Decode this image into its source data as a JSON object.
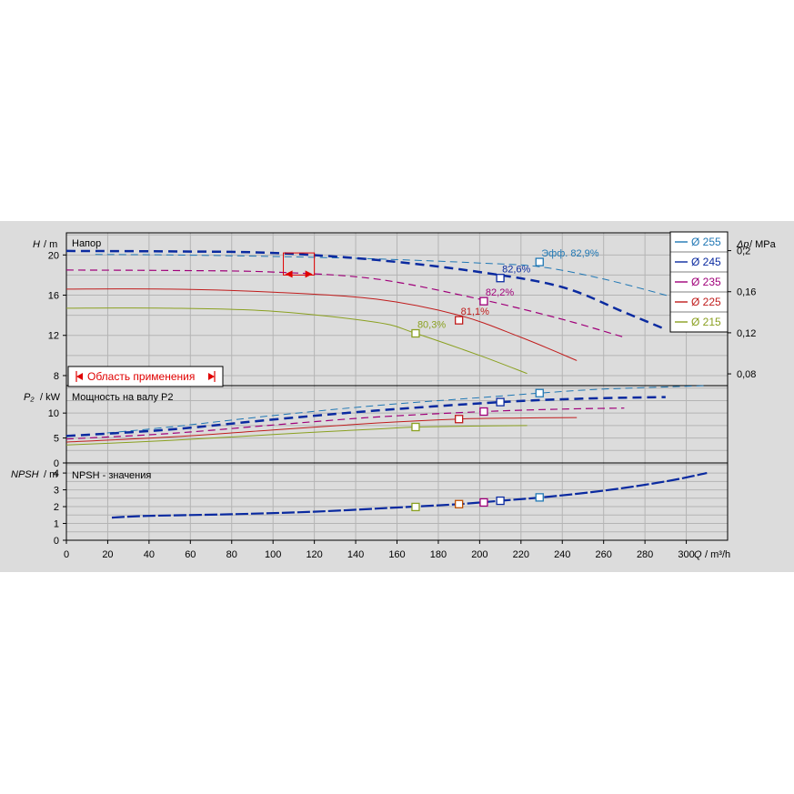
{
  "chart_data": {
    "type": "line",
    "x_axis": {
      "label": "Q",
      "unit": "m³/h",
      "ticks": [
        0,
        20,
        40,
        60,
        80,
        100,
        120,
        140,
        160,
        180,
        200,
        220,
        240,
        260,
        280,
        300
      ],
      "range": [
        0,
        320
      ]
    },
    "head_panel": {
      "title": "Напор",
      "y_label": "H",
      "y_unit": "m",
      "y_ticks": [
        8,
        12,
        16,
        20
      ],
      "y_range": [
        7,
        22.2
      ],
      "y2_label": "Δp",
      "y2_unit": "MPa",
      "y2_ticks": [
        "0,08",
        "0,12",
        "0,16",
        "0,2"
      ],
      "y2_values": [
        0.08,
        0.12,
        0.16,
        0.2
      ],
      "application_area_label": "Область применения",
      "series": [
        {
          "name": "Ø 255",
          "color": "#1f77b4",
          "points": [
            [
              14,
              20.05
            ],
            [
              50,
              20.0
            ],
            [
              100,
              19.85
            ],
            [
              150,
              19.6
            ],
            [
              200,
              19.2
            ],
            [
              230,
              18.8
            ],
            [
              260,
              17.6
            ],
            [
              290,
              16.0
            ],
            [
              310,
              14.8
            ]
          ],
          "bep_q": 229,
          "bep_h": 19.3,
          "eff_label": "Эфф.  82,9%"
        },
        {
          "name": "Ø 245",
          "color": "#0a2aa0",
          "points": [
            [
              0,
              20.4
            ],
            [
              50,
              20.35
            ],
            [
              100,
              20.2
            ],
            [
              150,
              19.5
            ],
            [
              200,
              18.3
            ],
            [
              240,
              16.8
            ],
            [
              270,
              14.3
            ],
            [
              290,
              12.6
            ]
          ],
          "bep_q": 210,
          "bep_h": 17.7,
          "eff_label": "82,6%"
        },
        {
          "name": "Ø 235",
          "color": "#a0007a",
          "points": [
            [
              0,
              18.5
            ],
            [
              50,
              18.45
            ],
            [
              100,
              18.3
            ],
            [
              150,
              17.6
            ],
            [
              200,
              15.6
            ],
            [
              240,
              13.6
            ],
            [
              270,
              11.8
            ]
          ],
          "bep_q": 202,
          "bep_h": 15.4,
          "eff_label": "82,2%"
        },
        {
          "name": "Ø 225",
          "color": "#c01c1c",
          "points": [
            [
              0,
              16.6
            ],
            [
              50,
              16.6
            ],
            [
              100,
              16.3
            ],
            [
              150,
              15.6
            ],
            [
              190,
              14.0
            ],
            [
              220,
              11.8
            ],
            [
              247,
              9.5
            ]
          ],
          "bep_q": 190,
          "bep_h": 13.5,
          "eff_label": "81,1%"
        },
        {
          "name": "Ø 215",
          "color": "#8aa020",
          "points": [
            [
              0,
              14.7
            ],
            [
              50,
              14.7
            ],
            [
              100,
              14.4
            ],
            [
              150,
              13.3
            ],
            [
              169,
              12.2
            ],
            [
              200,
              10.0
            ],
            [
              223,
              8.2
            ]
          ],
          "bep_q": 169,
          "bep_h": 12.2,
          "eff_label": "80,3%"
        }
      ]
    },
    "power_panel": {
      "title": "Мощность на валу P2",
      "y_label": "P₂",
      "y_unit": "kW",
      "y_ticks": [
        0,
        5,
        10
      ],
      "y_range": [
        0,
        15.5
      ],
      "series": [
        {
          "name": "Ø 255",
          "color": "#1f77b4",
          "points": [
            [
              14,
              5.8
            ],
            [
              50,
              7.2
            ],
            [
              100,
              9.5
            ],
            [
              150,
              11.5
            ],
            [
              200,
              13.1
            ],
            [
              229,
              14.0
            ],
            [
              260,
              14.8
            ],
            [
              310,
              15.5
            ]
          ],
          "bep_q": 229,
          "bep_p": 14.0
        },
        {
          "name": "Ø 245",
          "color": "#0a2aa0",
          "points": [
            [
              0,
              5.4
            ],
            [
              50,
              6.7
            ],
            [
              100,
              8.7
            ],
            [
              150,
              10.5
            ],
            [
              210,
              12.2
            ],
            [
              250,
              12.9
            ],
            [
              290,
              13.2
            ]
          ],
          "bep_q": 210,
          "bep_p": 12.2
        },
        {
          "name": "Ø 235",
          "color": "#a0007a",
          "points": [
            [
              0,
              4.8
            ],
            [
              50,
              5.9
            ],
            [
              100,
              7.6
            ],
            [
              150,
              9.2
            ],
            [
              202,
              10.3
            ],
            [
              240,
              10.8
            ],
            [
              270,
              11.0
            ]
          ],
          "bep_q": 202,
          "bep_p": 10.3
        },
        {
          "name": "Ø 225",
          "color": "#c01c1c",
          "points": [
            [
              0,
              4.2
            ],
            [
              50,
              5.2
            ],
            [
              100,
              6.6
            ],
            [
              150,
              8.0
            ],
            [
              190,
              8.8
            ],
            [
              220,
              9.0
            ],
            [
              247,
              9.1
            ]
          ],
          "bep_q": 190,
          "bep_p": 8.8
        },
        {
          "name": "Ø 215",
          "color": "#8aa020",
          "points": [
            [
              0,
              3.6
            ],
            [
              50,
              4.5
            ],
            [
              100,
              5.7
            ],
            [
              150,
              6.8
            ],
            [
              169,
              7.2
            ],
            [
              200,
              7.4
            ],
            [
              223,
              7.5
            ]
          ],
          "bep_q": 169,
          "bep_p": 7.2
        }
      ]
    },
    "npsh_panel": {
      "title": "NPSH - значения",
      "y_label": "NPSH",
      "y_unit": "m",
      "y_ticks": [
        0,
        1,
        2,
        3,
        4
      ],
      "y_range": [
        0,
        4.6
      ],
      "series": [
        {
          "name": "NPSH",
          "color": "#0a2aa0",
          "points": [
            [
              22,
              1.35
            ],
            [
              40,
              1.45
            ],
            [
              80,
              1.55
            ],
            [
              120,
              1.7
            ],
            [
              160,
              1.95
            ],
            [
              190,
              2.15
            ],
            [
              210,
              2.35
            ],
            [
              230,
              2.55
            ],
            [
              260,
              2.95
            ],
            [
              290,
              3.5
            ],
            [
              310,
              4.0
            ]
          ],
          "markers": [
            [
              169,
              1.98,
              "#8aa020"
            ],
            [
              190,
              2.15,
              "#c05000"
            ],
            [
              202,
              2.25,
              "#a0007a"
            ],
            [
              210,
              2.35,
              "#0a2aa0"
            ],
            [
              229,
              2.55,
              "#1f77b4"
            ]
          ]
        }
      ]
    },
    "legend": {
      "placement": "top-right",
      "entries": [
        "Ø 255",
        "Ø 245",
        "Ø 235",
        "Ø 225",
        "Ø 215"
      ]
    },
    "grid": true
  }
}
